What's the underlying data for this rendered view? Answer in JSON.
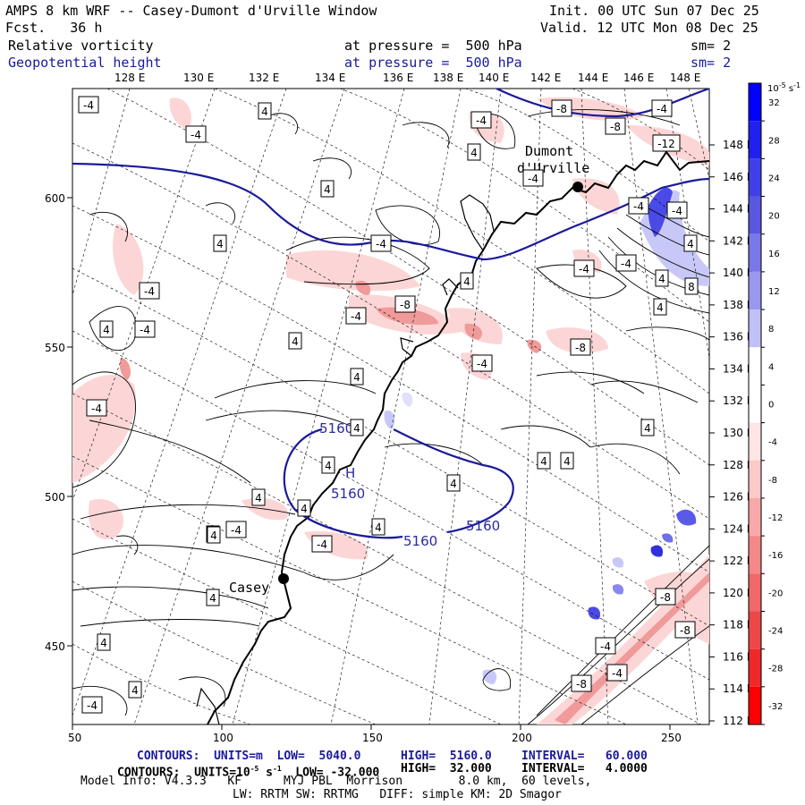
{
  "header": {
    "title": "AMPS 8 km WRF -- Casey-Dumont d'Urville Window",
    "forecast": "Fcst.   36 h",
    "init": "Init. 00 UTC Sun 07 Dec 25",
    "valid": "Valid. 12 UTC Mon 08 Dec 25",
    "field1": {
      "name": "Relative vorticity",
      "level": "at pressure =  500 hPa",
      "smooth": "sm= 2"
    },
    "field2": {
      "name": "Geopotential height",
      "level": "at pressure =  500 hPa",
      "smooth": "sm= 2"
    }
  },
  "top_lon_labels": [
    "128 E",
    "130 E",
    "132 E",
    "134 E",
    "136 E",
    "138 E",
    "140 E",
    "142 E",
    "144 E",
    "146 E",
    "148 E"
  ],
  "right_lon_labels": [
    "148 E",
    "146 E",
    "144 E",
    "142 E",
    "140 E",
    "138 E",
    "136 E",
    "134 E",
    "132 E",
    "130 E",
    "128 E",
    "126 E",
    "124 E",
    "122 E",
    "120 E",
    "118 E",
    "116 E",
    "114 E",
    "112 E"
  ],
  "x_axis": {
    "ticks": [
      "50",
      "100",
      "150",
      "200",
      "250"
    ]
  },
  "y_axis": {
    "ticks": [
      "600",
      "550",
      "500",
      "450"
    ]
  },
  "colorbar": {
    "unit_label": "10^-5 s^-1",
    "ticks": [
      "32",
      "28",
      "24",
      "20",
      "16",
      "12",
      "8",
      "4",
      "0",
      "-4",
      "-8",
      "-12",
      "-16",
      "-20",
      "-24",
      "-28",
      "-32"
    ],
    "colors": [
      "#0000ff",
      "#2020f0",
      "#4040e8",
      "#5858e0",
      "#7878e8",
      "#9898f0",
      "#c0c0f8",
      "#ffffff",
      "#ffffff",
      "#ffe4e4",
      "#fcc8c8",
      "#f8a8a8",
      "#f48888",
      "#f06868",
      "#ec4848",
      "#f02828",
      "#ff0000"
    ]
  },
  "stations": {
    "dumont": "Dumont\nd'Urville",
    "casey": "Casey"
  },
  "contour_labels": {
    "vort_pos": "4",
    "vort_neg": "-4",
    "vort_neg8": "-8",
    "vort_pos8": "8",
    "vort_neg12": "-12",
    "height": "5160",
    "high": "H"
  },
  "footer": {
    "line1_a": "CONTOURS:  UNITS=m  LOW=  5040.0",
    "line1_b": "HIGH=  5160.0",
    "line1_c": "INTERVAL=   60.000",
    "line2_a": "CONTOURS:  UNITS=10^-5 s^-1  LOW= -32.000",
    "line2_b": "HIGH=  32.000",
    "line2_c": "INTERVAL=   4.0000",
    "line3": "Model Info: V4.3.3   KF      MYJ PBL  Morrison        8.0 km,  60 levels,",
    "line4": "LW: RRTM SW: RRTMG   DIFF: simple KM: 2D Smagor"
  }
}
